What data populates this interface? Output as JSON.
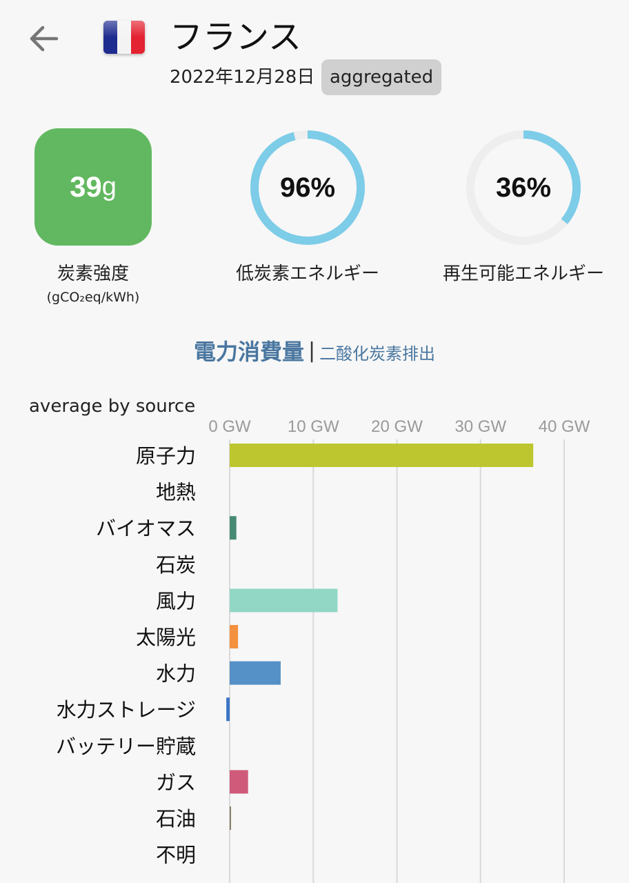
{
  "header": {
    "country": "フランス",
    "date": "2022年12月28日",
    "badge": "aggregated"
  },
  "metrics": {
    "carbon_intensity": {
      "value": "39",
      "unit": "g",
      "label": "炭素強度",
      "sublabel": "(gCO₂eq/kWh)",
      "color": "#62b860"
    },
    "low_carbon": {
      "percent": 96,
      "text": "96%",
      "label": "低炭素エネルギー"
    },
    "renewable": {
      "percent": 36,
      "text": "36%",
      "label": "再生可能エネルギー"
    },
    "ring_color": "#7dcce8",
    "ring_track_color": "#eeeeee"
  },
  "tabs": {
    "active": "電力消費量",
    "separator": "|",
    "inactive": "二酸化炭素排出"
  },
  "chart_data": {
    "type": "bar",
    "orientation": "horizontal",
    "title": "average by source",
    "x_ticks": [
      "0 GW",
      "10 GW",
      "20 GW",
      "30 GW",
      "40 GW"
    ],
    "xlim": [
      0,
      40
    ],
    "grid": true,
    "categories": [
      "原子力",
      "地熱",
      "バイオマス",
      "石炭",
      "風力",
      "太陽光",
      "水力",
      "水力ストレージ",
      "バッテリー貯蔵",
      "ガス",
      "石油",
      "不明"
    ],
    "values": [
      36.3,
      0,
      0.8,
      0,
      12.9,
      1.0,
      6.1,
      -0.4,
      0,
      2.2,
      0.1,
      0
    ],
    "colors": [
      "#bdc62e",
      "#7a4f2b",
      "#468a75",
      "#333333",
      "#92d6c6",
      "#f4913e",
      "#5590c6",
      "#3a73c4",
      "#8b6fc4",
      "#cf5a7a",
      "#867d66",
      "#aaaaaa"
    ]
  }
}
